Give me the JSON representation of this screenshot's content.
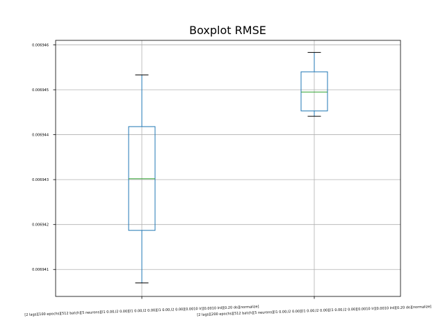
{
  "chart_data": {
    "type": "boxplot",
    "title": "Boxplot RMSE",
    "xlabel": "",
    "ylabel": "",
    "ylim": [
      0.0069404,
      0.0069461
    ],
    "yticks": [
      0.006941,
      0.006942,
      0.006943,
      0.006944,
      0.006945,
      0.006946
    ],
    "ytick_labels": [
      "0.006941",
      "0.006942",
      "0.006943",
      "0.006944",
      "0.006945",
      "0.006946"
    ],
    "grid": true,
    "categories": [
      "[2 lags][100 epochs][512 batch][5 neurons][l1 0.00,l2 0.00][l1 0.00,l2 0.00][l1 0.00,l2 0.00][0.0010 lr][0.0010 lrd][0.20 do][normalize]",
      "[2 lags][200 epochs][512 batch][5 neurons][l1 0.00,l2 0.00][l1 0.00,l2 0.00][l1 0.00,l2 0.00][0.0010 lr][0.0010 lrd][0.20 do][normalize]"
    ],
    "boxes": [
      {
        "whisker_low": 0.0069407,
        "q1": 0.00694187,
        "median": 0.00694302,
        "q3": 0.00694418,
        "whisker_high": 0.00694533
      },
      {
        "whisker_low": 0.00694441,
        "q1": 0.00694453,
        "median": 0.00694495,
        "q3": 0.0069454,
        "whisker_high": 0.00694583
      }
    ],
    "colors": {
      "box": "#1f77b4",
      "median": "#2ca02c",
      "whisker_cap": "#000000",
      "grid": "#b0b0b0"
    }
  }
}
